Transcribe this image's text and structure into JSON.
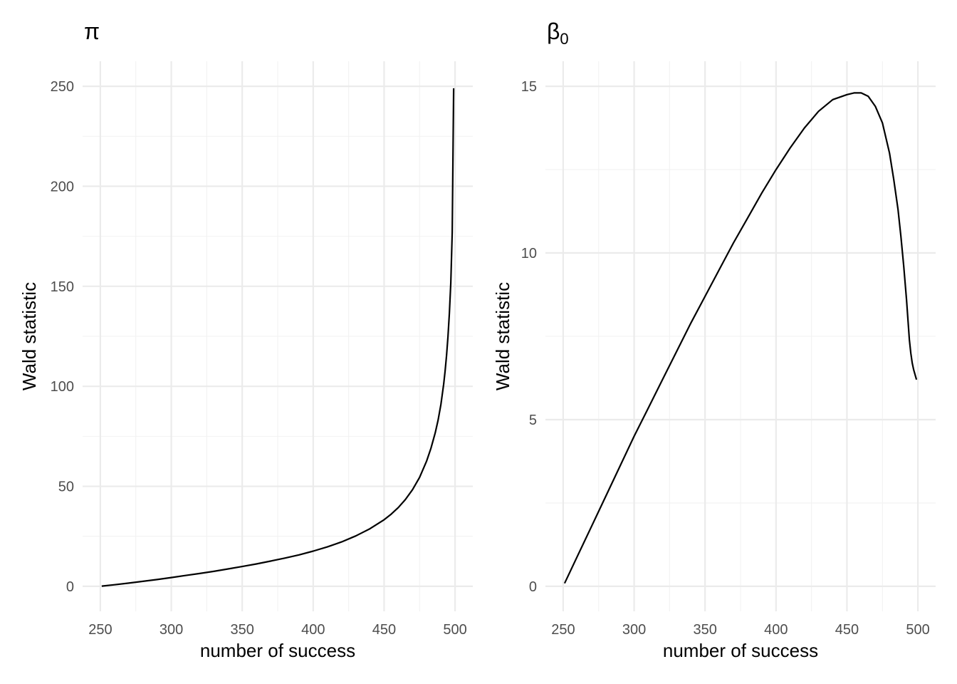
{
  "chart_data": [
    {
      "type": "line",
      "title": "π",
      "title_subscript": "",
      "xlabel": "number of success",
      "ylabel": "Wald statistic",
      "xlim": [
        237.5,
        512.5
      ],
      "ylim": [
        -12.5,
        262.5
      ],
      "x_ticks": [
        250,
        300,
        350,
        400,
        450,
        500
      ],
      "y_ticks": [
        0,
        50,
        100,
        150,
        200,
        250
      ],
      "grid": true,
      "series": [
        {
          "x": [
            251,
            260,
            270,
            280,
            290,
            300,
            310,
            320,
            330,
            340,
            350,
            360,
            370,
            380,
            390,
            400,
            410,
            420,
            430,
            440,
            450,
            455,
            460,
            465,
            470,
            475,
            480,
            483,
            486,
            488,
            490,
            492,
            493,
            494,
            495,
            496,
            497,
            498,
            499
          ],
          "values": [
            0.1,
            0.8,
            1.6,
            2.5,
            3.4,
            4.4,
            5.4,
            6.4,
            7.5,
            8.7,
            9.9,
            11.2,
            12.6,
            14.1,
            15.7,
            17.6,
            19.7,
            22.2,
            25.2,
            28.8,
            33.3,
            36.1,
            39.4,
            43.4,
            48.3,
            54.5,
            62.7,
            69.0,
            76.7,
            83.0,
            90.9,
            101.1,
            107.6,
            115.3,
            124.7,
            136.5,
            151.7,
            177.0,
            249.0
          ]
        }
      ]
    },
    {
      "type": "line",
      "title": "β",
      "title_subscript": "0",
      "xlabel": "number of success",
      "ylabel": "Wald statistic",
      "xlim": [
        237.5,
        512.5
      ],
      "ylim": [
        -0.75,
        15.75
      ],
      "x_ticks": [
        250,
        300,
        350,
        400,
        450,
        500
      ],
      "y_ticks": [
        0,
        5,
        10,
        15
      ],
      "grid": true,
      "series": [
        {
          "x": [
            251,
            260,
            270,
            280,
            290,
            300,
            310,
            320,
            330,
            340,
            350,
            360,
            370,
            380,
            390,
            400,
            410,
            420,
            430,
            440,
            450,
            455,
            460,
            465,
            470,
            475,
            480,
            483,
            486,
            488,
            490,
            492,
            493,
            494,
            495,
            496,
            497,
            498,
            499
          ],
          "values": [
            0.09,
            0.9,
            1.8,
            2.7,
            3.6,
            4.5,
            5.35,
            6.2,
            7.05,
            7.9,
            8.7,
            9.5,
            10.3,
            11.05,
            11.8,
            12.5,
            13.15,
            13.75,
            14.25,
            14.6,
            14.75,
            14.8,
            14.8,
            14.7,
            14.4,
            13.9,
            13.0,
            12.2,
            11.3,
            10.5,
            9.6,
            8.6,
            8.0,
            7.4,
            7.0,
            6.7,
            6.5,
            6.35,
            6.2
          ]
        }
      ]
    }
  ]
}
